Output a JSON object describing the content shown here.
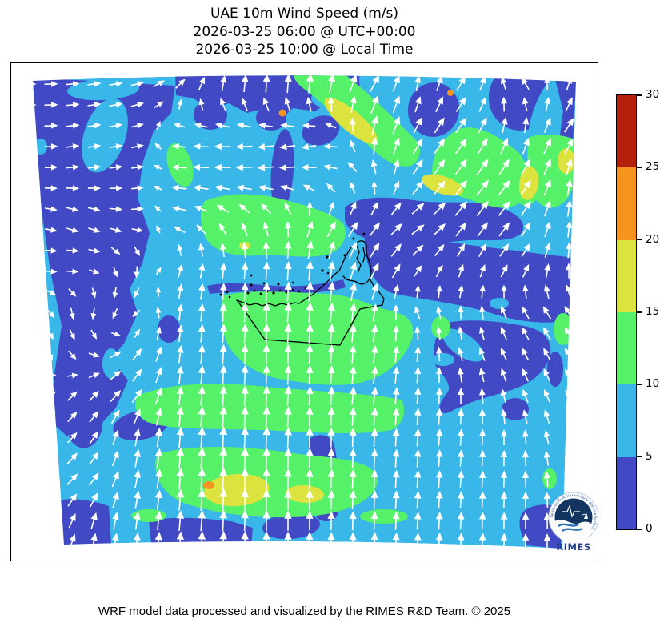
{
  "header": {
    "title": "UAE 10m Wind Speed (m/s)",
    "subtitle_utc": "2026-03-25 06:00 @ UTC+00:00",
    "subtitle_local": "2026-03-25 10:00 @ Local Time"
  },
  "footer": {
    "caption": "WRF model data processed and visualized by the RIMES R&D Team. © 2025"
  },
  "logo": {
    "text": "RIMES",
    "ring_text": "Regional Multi-Hazard Early Warning System"
  },
  "chart_data": {
    "type": "heatmap",
    "title": "UAE 10m Wind Speed (m/s)",
    "valid_time_utc": "2026-03-25 06:00 @ UTC+00:00",
    "valid_time_local": "2026-03-25 10:00 @ Local Time",
    "variable": "10m wind speed",
    "units": "m/s",
    "region": "UAE and surrounding Gulf / Arabian Peninsula domain with quiver wind vectors",
    "legend_position": "right",
    "colorbar": {
      "orientation": "vertical",
      "min": 0,
      "max": 30,
      "levels": [
        0,
        5,
        10,
        15,
        20,
        25,
        30
      ],
      "tick_labels": [
        "0",
        "5",
        "10",
        "15",
        "20",
        "25",
        "30"
      ],
      "segment_colors": [
        "#4149c5",
        "#38b7e8",
        "#55f168",
        "#dce23e",
        "#f6921e",
        "#b41f0a"
      ]
    },
    "map_colors": {
      "speed_0_5": "#4149c5",
      "speed_5_10": "#38b7e8",
      "speed_10_15": "#55f168",
      "speed_15_20": "#dce23e",
      "speed_20_25": "#f6921e",
      "speed_25_30": "#b41f0a",
      "coastline": "#000000",
      "arrow": "#ffffff"
    },
    "wind_grid": {
      "comment": "coarse 10m wind vector field sampled from the quiver plot; u=east, v=north, magnitude is relative arrow size",
      "x": [
        32,
        92,
        152,
        212,
        272,
        332,
        392,
        452,
        512,
        572,
        632,
        692
      ],
      "y": [
        32,
        87,
        142,
        197,
        252,
        307,
        362,
        417,
        472,
        527,
        582
      ],
      "uv": [
        [
          [
            0.5,
            0
          ],
          [
            0.5,
            0.05
          ],
          [
            0.5,
            0.1
          ],
          [
            0.35,
            0.35
          ],
          [
            0.1,
            0.8
          ],
          [
            0.05,
            1.0
          ],
          [
            0.15,
            1.1
          ],
          [
            0.5,
            0.9
          ],
          [
            0.1,
            0.7
          ],
          [
            0.5,
            0.7
          ],
          [
            -0.4,
            0.45
          ],
          [
            0.2,
            0.6
          ]
        ],
        [
          [
            0.5,
            0
          ],
          [
            0.5,
            0.08
          ],
          [
            0.5,
            0.1
          ],
          [
            -0.5,
            0.05
          ],
          [
            -0.8,
            0
          ],
          [
            -0.7,
            -0.1
          ],
          [
            -0.55,
            -0.2
          ],
          [
            0.2,
            1.1
          ],
          [
            0.5,
            0.8
          ],
          [
            0.6,
            0.8
          ],
          [
            0.1,
            0.8
          ],
          [
            0.5,
            0.7
          ]
        ],
        [
          [
            0.45,
            0
          ],
          [
            0.45,
            0.05
          ],
          [
            0.5,
            0.05
          ],
          [
            -0.7,
            0.05
          ],
          [
            -0.8,
            0
          ],
          [
            -0.8,
            -0.05
          ],
          [
            -0.6,
            0.1
          ],
          [
            -0.25,
            0.45
          ],
          [
            0.55,
            0.75
          ],
          [
            0.65,
            0.85
          ],
          [
            0.6,
            0.8
          ],
          [
            0.15,
            0.8
          ]
        ],
        [
          [
            0.4,
            -0.05
          ],
          [
            0.4,
            -0.2
          ],
          [
            0.5,
            0
          ],
          [
            -0.55,
            0.15
          ],
          [
            -0.35,
            0.45
          ],
          [
            -0.2,
            0.6
          ],
          [
            0.5,
            0.75
          ],
          [
            0.5,
            0.65
          ],
          [
            0.6,
            0.4
          ],
          [
            0.6,
            0.8
          ],
          [
            0.55,
            0.7
          ],
          [
            0.1,
            0.8
          ]
        ],
        [
          [
            0.4,
            0
          ],
          [
            0.4,
            0.05
          ],
          [
            0,
            -0.45
          ],
          [
            0.15,
            0.5
          ],
          [
            0.05,
            0.7
          ],
          [
            0.05,
            1.0
          ],
          [
            0.1,
            1.1
          ],
          [
            0.45,
            0.8
          ],
          [
            0.4,
            0.45
          ],
          [
            0.15,
            0.5
          ],
          [
            0.4,
            0.5
          ],
          [
            0.05,
            0.7
          ]
        ],
        [
          [
            0.35,
            -0.2
          ],
          [
            -0.05,
            -0.4
          ],
          [
            -0.25,
            -0.3
          ],
          [
            0.1,
            0.8
          ],
          [
            0.05,
            1.0
          ],
          [
            0.05,
            1.1
          ],
          [
            0.1,
            1.1
          ],
          [
            0.15,
            0.9
          ],
          [
            -0.2,
            0.4
          ],
          [
            0.05,
            0.5
          ],
          [
            -0.3,
            0.5
          ],
          [
            -0.35,
            0.55
          ]
        ],
        [
          [
            0,
            -0.35
          ],
          [
            0.3,
            -0.25
          ],
          [
            0.4,
            0.45
          ],
          [
            0.1,
            0.9
          ],
          [
            0.05,
            1.1
          ],
          [
            0,
            1.1
          ],
          [
            0.05,
            1.0
          ],
          [
            0.1,
            0.9
          ],
          [
            0.05,
            0.7
          ],
          [
            -0.2,
            0.55
          ],
          [
            -0.25,
            0.5
          ],
          [
            -0.3,
            0.5
          ]
        ],
        [
          [
            0.35,
            0.35
          ],
          [
            0.35,
            0.35
          ],
          [
            0.5,
            0.6
          ],
          [
            0.1,
            1.0
          ],
          [
            0.05,
            1.1
          ],
          [
            0.05,
            1.1
          ],
          [
            0.05,
            1.0
          ],
          [
            0.1,
            0.9
          ],
          [
            0.05,
            0.8
          ],
          [
            0,
            0.7
          ],
          [
            -0.2,
            0.55
          ],
          [
            -0.25,
            0.5
          ]
        ],
        [
          [
            0.35,
            0.35
          ],
          [
            0.4,
            0.45
          ],
          [
            0.15,
            0.9
          ],
          [
            0.1,
            1.2
          ],
          [
            0.05,
            1.3
          ],
          [
            0.05,
            1.2
          ],
          [
            0,
            1.1
          ],
          [
            0.05,
            1.0
          ],
          [
            0.05,
            0.9
          ],
          [
            0.05,
            0.8
          ],
          [
            0,
            0.7
          ],
          [
            -0.2,
            0.55
          ]
        ],
        [
          [
            0.4,
            0.45
          ],
          [
            0.5,
            0.5
          ],
          [
            0.2,
            0.9
          ],
          [
            0.1,
            1.3
          ],
          [
            0.05,
            1.4
          ],
          [
            0,
            1.2
          ],
          [
            0.05,
            1.1
          ],
          [
            0.05,
            1.0
          ],
          [
            0.05,
            0.9
          ],
          [
            0.05,
            0.8
          ],
          [
            0,
            0.8
          ],
          [
            -0.1,
            0.7
          ]
        ],
        [
          [
            0.4,
            0.4
          ],
          [
            0.2,
            0.8
          ],
          [
            0.1,
            0.9
          ],
          [
            0.1,
            1.1
          ],
          [
            0.05,
            1.2
          ],
          [
            0,
            1.1
          ],
          [
            0,
            1.0
          ],
          [
            0.05,
            1.0
          ],
          [
            0.05,
            0.9
          ],
          [
            0.05,
            0.9
          ],
          [
            0,
            0.8
          ],
          [
            0,
            0.7
          ]
        ]
      ]
    }
  }
}
